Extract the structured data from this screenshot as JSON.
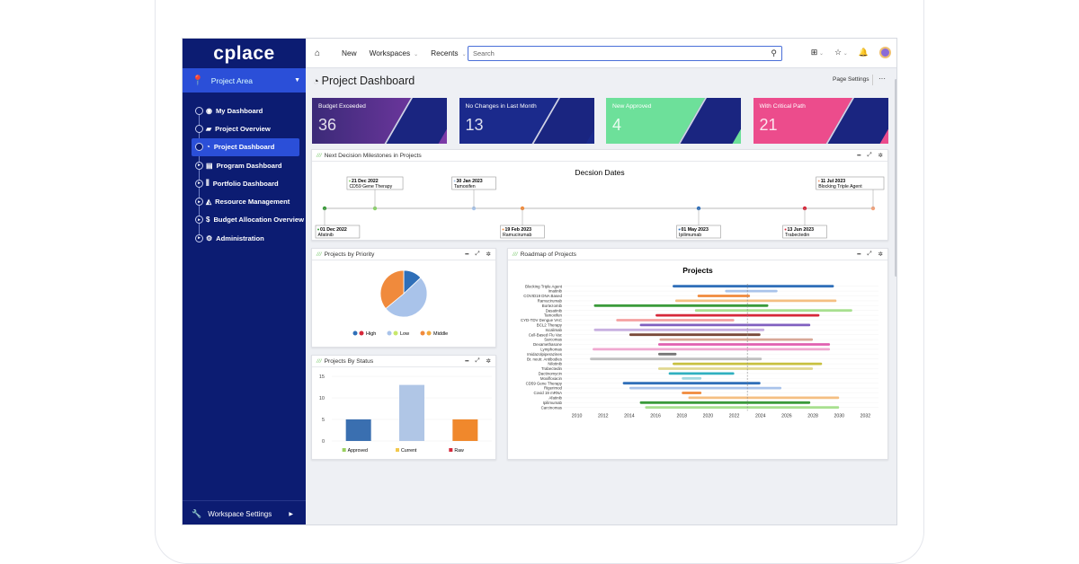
{
  "app": {
    "logo": "cplace",
    "project_area": "Project Area",
    "workspace_settings": "Workspace Settings"
  },
  "nav": [
    {
      "label": "My Dashboard",
      "icon": "user-circle-icon"
    },
    {
      "label": "Project Overview",
      "icon": "folder-open-icon"
    },
    {
      "label": "Project Dashboard",
      "icon": "gauge-icon",
      "active": true
    },
    {
      "label": "Program Dashboard",
      "icon": "book-icon"
    },
    {
      "label": "Portfolio Dashboard",
      "icon": "books-icon"
    },
    {
      "label": "Resource Management",
      "icon": "area-chart-icon"
    },
    {
      "label": "Budget Allocation Overview",
      "icon": "dollar-icon"
    },
    {
      "label": "Administration",
      "icon": "gears-icon"
    }
  ],
  "topbar": {
    "new": "New",
    "workspaces": "Workspaces",
    "recents": "Recents",
    "search_placeholder": "Search"
  },
  "page": {
    "title": "Project Dashboard",
    "settings": "Page Settings",
    "more": "···"
  },
  "kpis": [
    {
      "label": "Budget Exceeded",
      "value": "36",
      "color": "#5d2f8e"
    },
    {
      "label": "No Changes in Last Month",
      "value": "13",
      "color": "#1b2a8c"
    },
    {
      "label": "New Approved",
      "value": "4",
      "color": "#6de09a"
    },
    {
      "label": "With Critical Path",
      "value": "21",
      "color": "#ec4c8c"
    }
  ],
  "panels": {
    "milestones": "Next Decision Milestones in Projects",
    "priority": "Projects by Priority",
    "status": "Projects By Status",
    "roadmap": "Roadmap of Projects"
  },
  "chart_data": [
    {
      "type": "timeline",
      "title": "Decsion Dates",
      "milestones": [
        {
          "date": "01 Dec 2022",
          "name": "Afatinib",
          "color": "#3a9a3a",
          "pos": "below"
        },
        {
          "date": "21 Dec 2022",
          "name": "CD59 Gene Therapy",
          "color": "#8bd36a",
          "pos": "above"
        },
        {
          "date": "30 Jan 2023",
          "name": "Tamoxifen",
          "color": "#a8c4e8",
          "pos": "above"
        },
        {
          "date": "19 Feb 2023",
          "name": "Ramucirumab",
          "color": "#f08a3c",
          "pos": "below"
        },
        {
          "date": "01 May 2023",
          "name": "Ipilimumab",
          "color": "#2f6fb8",
          "pos": "below"
        },
        {
          "date": "13 Jun 2023",
          "name": "Trabectedin",
          "color": "#d6283a",
          "pos": "below"
        },
        {
          "date": "11 Jul 2023",
          "name": "Blocking Triple Agent",
          "color": "#f4a27a",
          "pos": "above"
        }
      ]
    },
    {
      "type": "pie",
      "slices": [
        {
          "name": "High",
          "value": 13,
          "color": "#2f6fb8"
        },
        {
          "name": "Low",
          "value": 51,
          "color": "#a9c3ea"
        },
        {
          "name": "Middle",
          "value": 36,
          "color": "#f08a3c"
        }
      ],
      "legend": [
        {
          "name": "High",
          "colors": [
            "#2f6fb8",
            "#d6283a"
          ]
        },
        {
          "name": "Low",
          "colors": [
            "#a9c3ea",
            "#c8e86a"
          ]
        },
        {
          "name": "Middle",
          "colors": [
            "#f08a3c",
            "#f2a93c"
          ]
        }
      ]
    },
    {
      "type": "bar",
      "categories": [
        "Approved",
        "Current",
        "Raw"
      ],
      "values": [
        5,
        13,
        5
      ],
      "colors": [
        "#3a6fb0",
        "#b0c6e6",
        "#f0882c"
      ],
      "legend_colors": [
        "#9ad060",
        "#f2c94c",
        "#d6283a"
      ],
      "yticks": [
        0,
        5,
        10,
        15
      ],
      "ylim": [
        0,
        15
      ]
    },
    {
      "type": "gantt",
      "title": "Projects",
      "xlim": [
        2009,
        2033
      ],
      "xticks": [
        2010,
        2012,
        2014,
        2016,
        2018,
        2020,
        2022,
        2024,
        2026,
        2028,
        2030,
        2032
      ],
      "today": 2023,
      "rows": [
        {
          "name": "Blocking Triple Agent",
          "start": 2017.3,
          "end": 2029.6,
          "color": "#2f6fb8"
        },
        {
          "name": "Imatinib",
          "start": 2021.3,
          "end": 2025.3,
          "color": "#a9c3ea"
        },
        {
          "name": "COVID19 DNA Based",
          "start": 2019.2,
          "end": 2023.2,
          "color": "#f08a3c"
        },
        {
          "name": "Ramucirumab",
          "start": 2017.5,
          "end": 2029.8,
          "color": "#f4bf82"
        },
        {
          "name": "Bortezomib",
          "start": 2011.3,
          "end": 2024.6,
          "color": "#3a9a3a"
        },
        {
          "name": "Dasatinib",
          "start": 2019.0,
          "end": 2031.0,
          "color": "#a8e090"
        },
        {
          "name": "Tamoxifen",
          "start": 2016.0,
          "end": 2028.5,
          "color": "#d6283a"
        },
        {
          "name": "CYD-TDV Dengue VAC",
          "start": 2013.0,
          "end": 2022.0,
          "color": "#f5a0a0"
        },
        {
          "name": "BCL2 Therapy",
          "start": 2014.8,
          "end": 2027.8,
          "color": "#8060c0"
        },
        {
          "name": "Iscalimab",
          "start": 2011.3,
          "end": 2024.3,
          "color": "#c8b0e0"
        },
        {
          "name": "Cell-Based Flu Vac",
          "start": 2014.0,
          "end": 2024.0,
          "color": "#7a4a3a"
        },
        {
          "name": "Sarcomas",
          "start": 2016.3,
          "end": 2028.0,
          "color": "#d8a898"
        },
        {
          "name": "Dexamethasone",
          "start": 2016.2,
          "end": 2029.3,
          "color": "#e060b0"
        },
        {
          "name": "Lymphomas",
          "start": 2011.2,
          "end": 2029.3,
          "color": "#f0a8d0"
        },
        {
          "name": "Imidazolpiperazines",
          "start": 2016.2,
          "end": 2017.6,
          "color": "#777777"
        },
        {
          "name": "Br. neutr. Antibodies",
          "start": 2011.0,
          "end": 2024.1,
          "color": "#c0c0c0"
        },
        {
          "name": "Nilotinib",
          "start": 2017.3,
          "end": 2028.7,
          "color": "#c8c040"
        },
        {
          "name": "Trabectedin",
          "start": 2016.2,
          "end": 2028.0,
          "color": "#e0d890"
        },
        {
          "name": "Dactinomycin",
          "start": 2017.0,
          "end": 2022.0,
          "color": "#30b0c0"
        },
        {
          "name": "Moxifloxacin",
          "start": 2018.0,
          "end": 2019.5,
          "color": "#a0d8e0"
        },
        {
          "name": "CD59 Gene Therapy",
          "start": 2013.5,
          "end": 2024.0,
          "color": "#2f6fb8"
        },
        {
          "name": "Rigerimod",
          "start": 2014.0,
          "end": 2025.6,
          "color": "#a9c3ea"
        },
        {
          "name": "Covid 19 mRNA",
          "start": 2018.0,
          "end": 2019.5,
          "color": "#f08a3c"
        },
        {
          "name": "Afatinib",
          "start": 2018.5,
          "end": 2030.0,
          "color": "#f4bf82"
        },
        {
          "name": "Ipilimumab",
          "start": 2014.8,
          "end": 2027.8,
          "color": "#3a9a3a"
        },
        {
          "name": "Carcinomas",
          "start": 2015.2,
          "end": 2030.0,
          "color": "#a8e090"
        }
      ]
    }
  ]
}
